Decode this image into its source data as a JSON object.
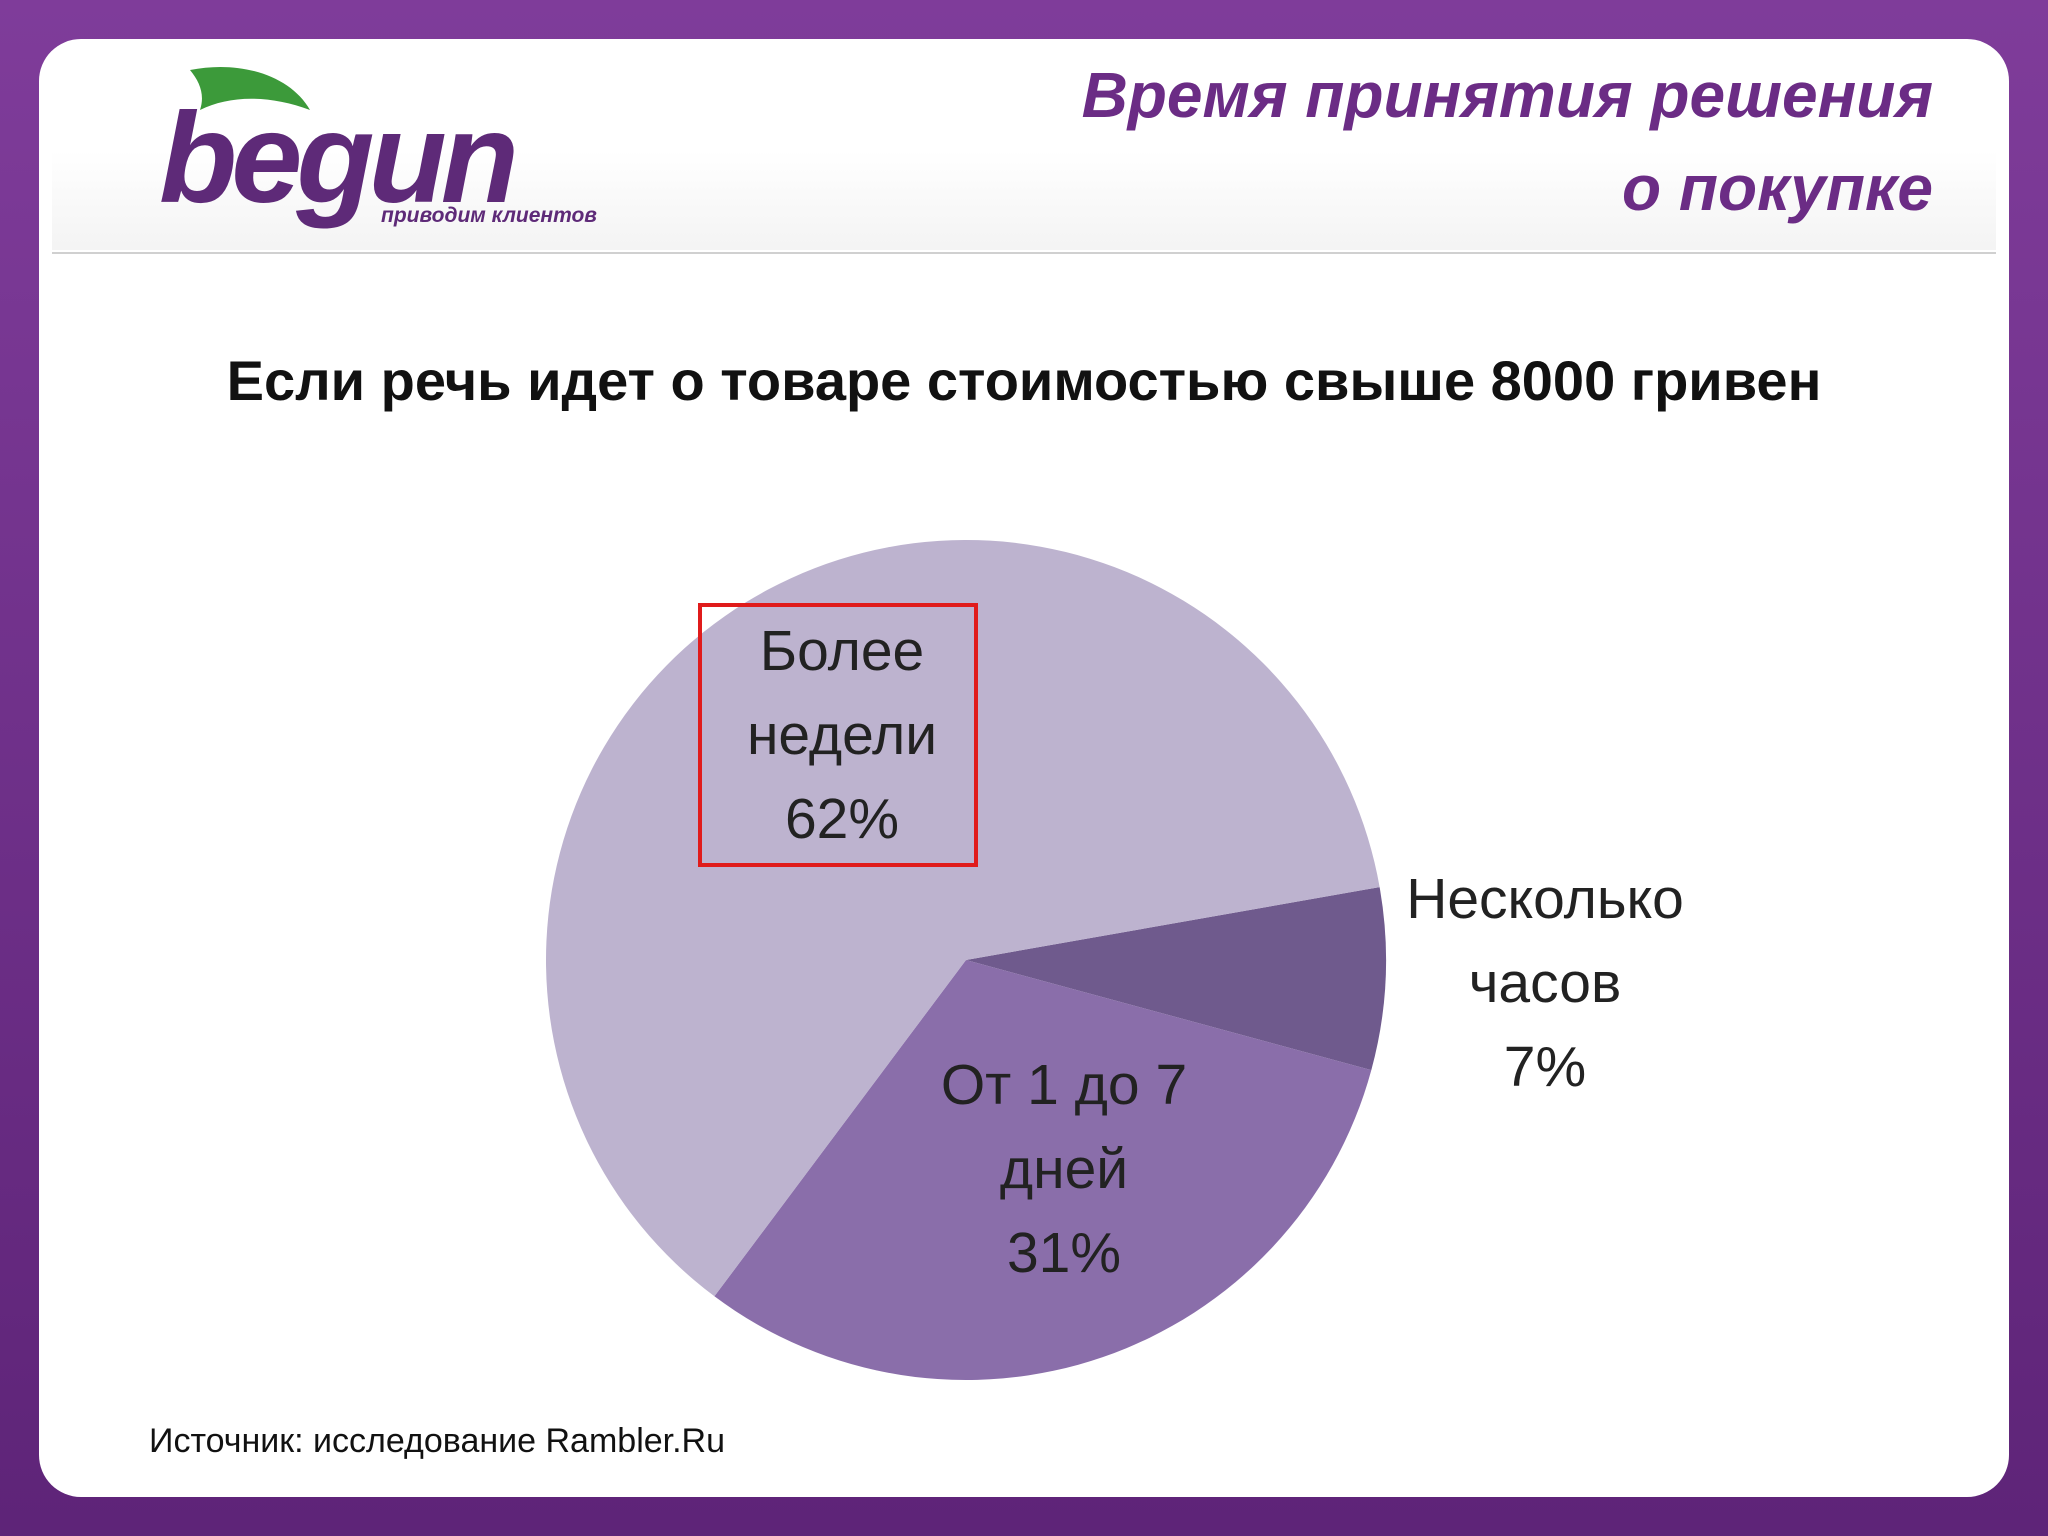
{
  "header": {
    "logo": "begun",
    "tagline": "приводим клиентов",
    "title": [
      "Время принятия решения",
      "о покупке"
    ]
  },
  "chart_data": {
    "type": "pie",
    "title": "Если речь идет о товаре стоимостью свыше 8000 гривен",
    "categories": [
      "Несколько часов",
      "От 1 до 7 дней",
      "Более недели"
    ],
    "values": [
      7,
      31,
      62
    ],
    "value_labels": [
      "7%",
      "31%",
      "62%"
    ],
    "colors": [
      "#6f5a8d",
      "#8a6eaa",
      "#bdb3cf"
    ]
  },
  "footer": {
    "source": "Источник: исследование Rambler.Ru"
  }
}
